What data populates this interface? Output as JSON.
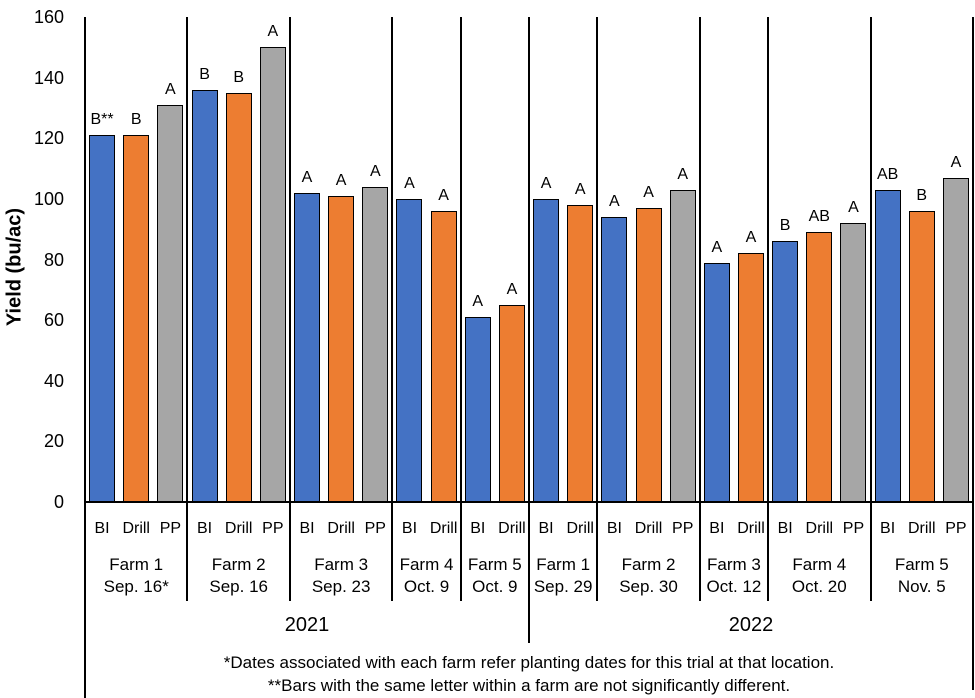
{
  "chart_data": {
    "type": "bar",
    "title": "",
    "ylabel": "Yield (bu/ac)",
    "xlabel": "",
    "ylim": [
      0,
      160
    ],
    "yticks": [
      0,
      20,
      40,
      60,
      80,
      100,
      120,
      140,
      160
    ],
    "grid": false,
    "legend_position": "none",
    "treatment_colors": {
      "BI": "#4472C4",
      "Drill": "#ED7D31",
      "PP": "#A6A6A6"
    },
    "bar_border_color": "#000000",
    "groups": [
      {
        "year": "2021",
        "farm": "Farm 1",
        "date": "Sep. 16*",
        "bars": [
          {
            "treatment": "BI",
            "value": 121,
            "letter": "B**"
          },
          {
            "treatment": "Drill",
            "value": 121,
            "letter": "B"
          },
          {
            "treatment": "PP",
            "value": 131,
            "letter": "A"
          }
        ]
      },
      {
        "year": "2021",
        "farm": "Farm 2",
        "date": "Sep. 16",
        "bars": [
          {
            "treatment": "BI",
            "value": 136,
            "letter": "B"
          },
          {
            "treatment": "Drill",
            "value": 135,
            "letter": "B"
          },
          {
            "treatment": "PP",
            "value": 150,
            "letter": "A"
          }
        ]
      },
      {
        "year": "2021",
        "farm": "Farm 3",
        "date": "Sep. 23",
        "bars": [
          {
            "treatment": "BI",
            "value": 102,
            "letter": "A"
          },
          {
            "treatment": "Drill",
            "value": 101,
            "letter": "A"
          },
          {
            "treatment": "PP",
            "value": 104,
            "letter": "A"
          }
        ]
      },
      {
        "year": "2021",
        "farm": "Farm 4",
        "date": "Oct. 9",
        "bars": [
          {
            "treatment": "BI",
            "value": 100,
            "letter": "A"
          },
          {
            "treatment": "Drill",
            "value": 96,
            "letter": "A"
          }
        ]
      },
      {
        "year": "2021",
        "farm": "Farm 5",
        "date": "Oct. 9",
        "bars": [
          {
            "treatment": "BI",
            "value": 61,
            "letter": "A"
          },
          {
            "treatment": "Drill",
            "value": 65,
            "letter": "A"
          }
        ]
      },
      {
        "year": "2022",
        "farm": "Farm 1",
        "date": "Sep. 29",
        "bars": [
          {
            "treatment": "BI",
            "value": 100,
            "letter": "A"
          },
          {
            "treatment": "Drill",
            "value": 98,
            "letter": "A"
          }
        ]
      },
      {
        "year": "2022",
        "farm": "Farm 2",
        "date": "Sep. 30",
        "bars": [
          {
            "treatment": "BI",
            "value": 94,
            "letter": "A"
          },
          {
            "treatment": "Drill",
            "value": 97,
            "letter": "A"
          },
          {
            "treatment": "PP",
            "value": 103,
            "letter": "A"
          }
        ]
      },
      {
        "year": "2022",
        "farm": "Farm 3",
        "date": "Oct. 12",
        "bars": [
          {
            "treatment": "BI",
            "value": 79,
            "letter": "A"
          },
          {
            "treatment": "Drill",
            "value": 82,
            "letter": "A"
          }
        ]
      },
      {
        "year": "2022",
        "farm": "Farm 4",
        "date": "Oct. 20",
        "bars": [
          {
            "treatment": "BI",
            "value": 86,
            "letter": "B"
          },
          {
            "treatment": "Drill",
            "value": 89,
            "letter": "AB"
          },
          {
            "treatment": "PP",
            "value": 92,
            "letter": "A"
          }
        ]
      },
      {
        "year": "2022",
        "farm": "Farm 5",
        "date": "Nov. 5",
        "bars": [
          {
            "treatment": "BI",
            "value": 103,
            "letter": "AB"
          },
          {
            "treatment": "Drill",
            "value": 96,
            "letter": "B"
          },
          {
            "treatment": "PP",
            "value": 107,
            "letter": "A"
          }
        ]
      }
    ],
    "footnotes": [
      "*Dates associated with each farm refer planting dates for this trial at that location.",
      "**Bars with the same letter within a farm are not significantly different."
    ]
  }
}
